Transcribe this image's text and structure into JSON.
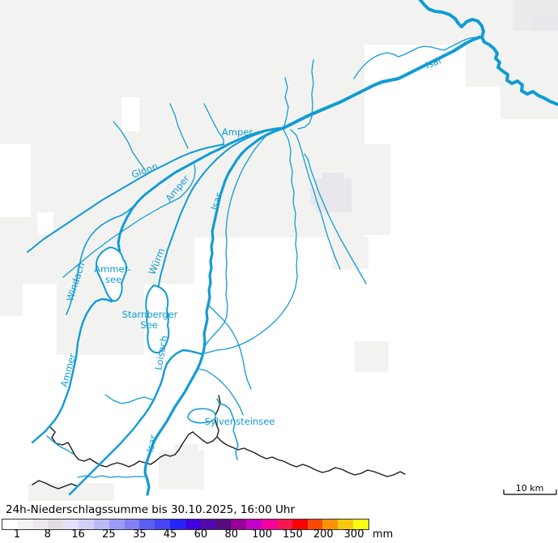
{
  "title": "24h-Niederschlagssumme bis 30.10.2025, 16:00 Uhr",
  "scale_bar": {
    "label": "10 km"
  },
  "map": {
    "labels": [
      "Isar",
      "Amper",
      "Glonn",
      "Amper",
      "Isar",
      "Windach",
      "Ammer-",
      "see",
      "Würm",
      "Starnberger",
      "See",
      "Loisach",
      "Ammer",
      "Sylvensteinsee",
      "Isar"
    ]
  },
  "legend": {
    "unit": "mm",
    "ticks": [
      "1",
      "8",
      "16",
      "25",
      "35",
      "45",
      "60",
      "80",
      "100",
      "150",
      "200",
      "300"
    ],
    "colors": [
      "#ffffff",
      "#f3f3f1",
      "#eceaed",
      "#e0dee3",
      "#e3e1fa",
      "#d1d1f8",
      "#bbbbf6",
      "#9c9cf8",
      "#8181f4",
      "#5d5df1",
      "#4646f4",
      "#2525fb",
      "#4100e0",
      "#5209aa",
      "#550c7d",
      "#96029b",
      "#c601c9",
      "#f8009d",
      "#fb1653",
      "#f40502",
      "#fb4905",
      "#fb9308",
      "#fbc90b",
      "#fbfb12"
    ]
  },
  "colors": {
    "river": "#119bd4",
    "label": "#119bd4",
    "boundary": "#1a1a1a",
    "precip1": "#f2f3f0",
    "precip2": "#e9e7ec",
    "precip3": "#ebebee",
    "background": "#ffffff"
  }
}
